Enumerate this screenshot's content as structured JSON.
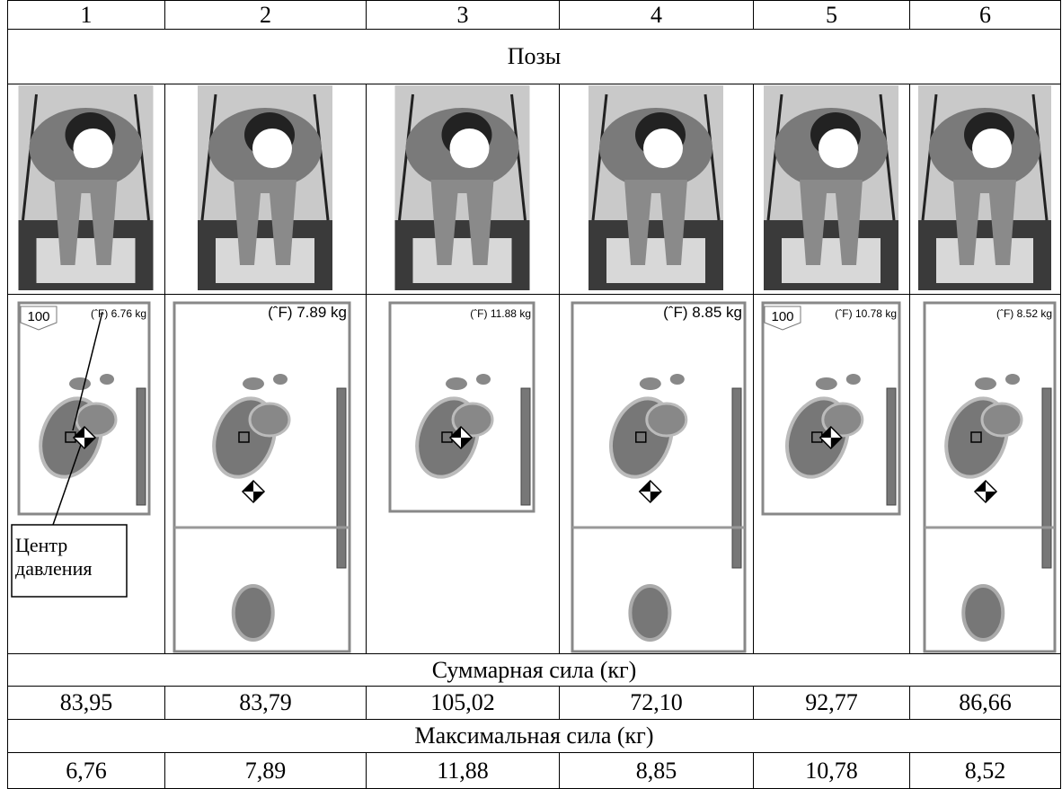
{
  "table": {
    "columns": [
      "1",
      "2",
      "3",
      "4",
      "5",
      "6"
    ],
    "poses_title": "Позы",
    "force_maps": [
      {
        "label": "(ˆF) 6.76 kg",
        "scale": "100"
      },
      {
        "label": "(ˆF) 7.89 kg"
      },
      {
        "label": "(ˆF) 11.88 kg"
      },
      {
        "label": "(ˆF) 8.85 kg"
      },
      {
        "label": "(ˆF) 10.78 kg",
        "scale": "100"
      },
      {
        "label": "(ˆF) 8.52 kg"
      }
    ],
    "annotation": [
      "Центр",
      "давления"
    ],
    "total_force_title": "Суммарная сила (кг)",
    "total_force": [
      "83,95",
      "83,79",
      "105,02",
      "72,10",
      "92,77",
      "86,66"
    ],
    "max_force_title": "Максимальная сила (кг)",
    "max_force": [
      "6,76",
      "7,89",
      "11,88",
      "8,85",
      "10,78",
      "8,52"
    ]
  }
}
